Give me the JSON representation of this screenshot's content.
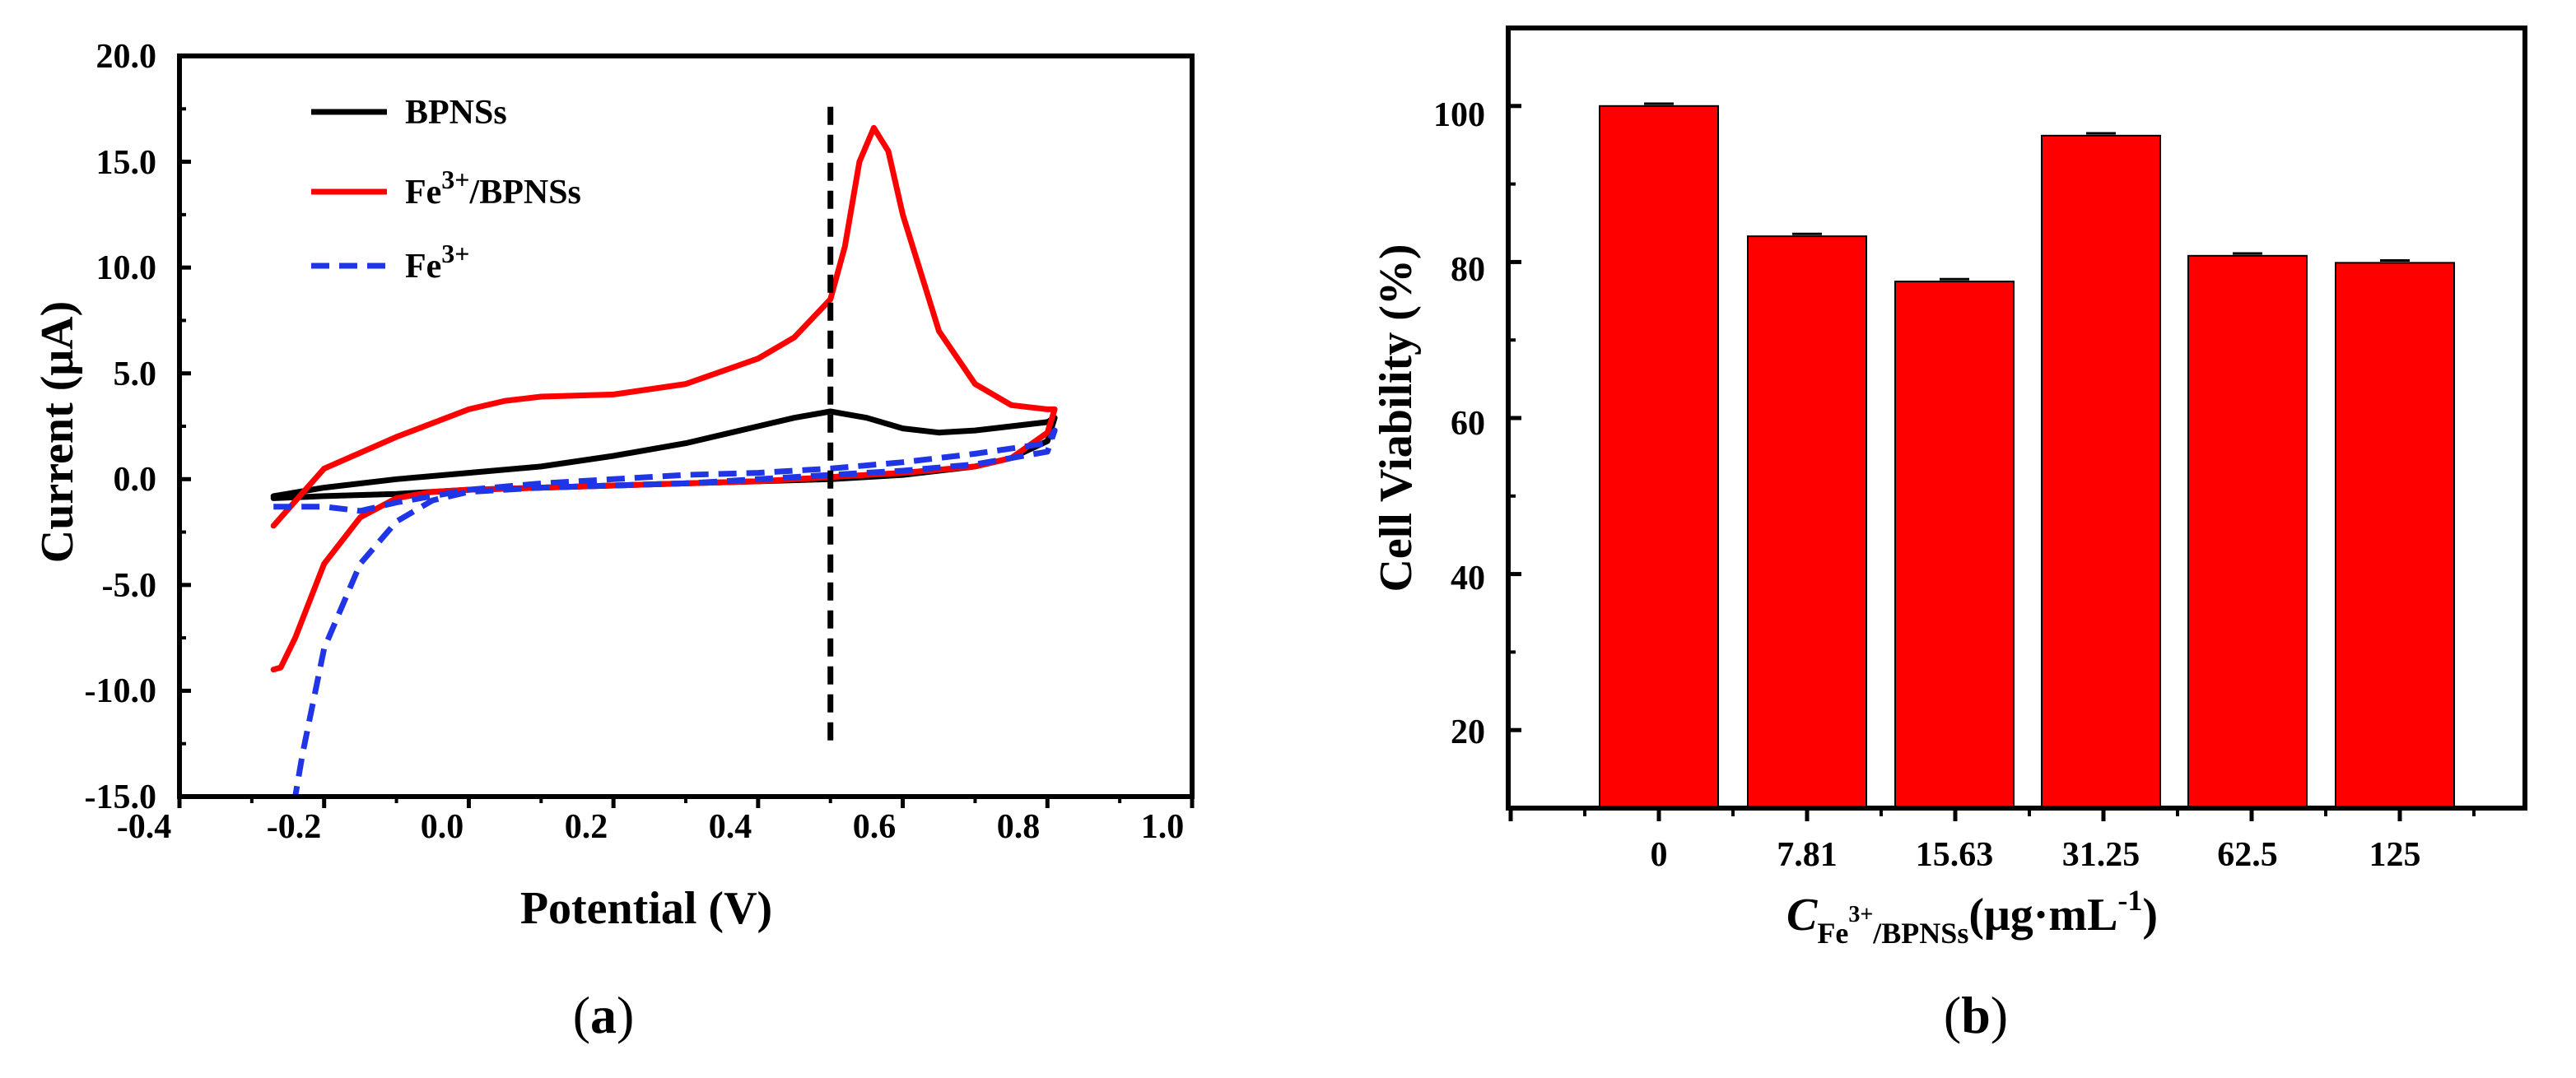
{
  "chart_data": [
    {
      "id": "a",
      "type": "line",
      "xlabel": "Potential (V)",
      "ylabel": "Current (μA)",
      "xlim": [
        -0.4,
        1.0
      ],
      "ylim": [
        -15.0,
        20.0
      ],
      "xticks": [
        "-0.4",
        "-0.2",
        "0.0",
        "0.2",
        "0.4",
        "0.6",
        "0.8",
        "1.0"
      ],
      "yticks": [
        "20.0",
        "15.0",
        "10.0",
        "5.0",
        "0.0",
        "-5.0",
        "-10.0",
        "-15.0"
      ],
      "legend_position": "top-left",
      "annotations": [
        {
          "type": "vertical-dashed-line",
          "x": 0.5,
          "y_from": -12.8,
          "y_to": 17.6
        }
      ],
      "series": [
        {
          "name": "BPNSs",
          "legend_main": "BPNSs",
          "legend_sup": "",
          "legend_tail": "",
          "color": "#000000",
          "dash": "solid",
          "x": [
            -0.27,
            -0.2,
            -0.1,
            0.0,
            0.1,
            0.2,
            0.3,
            0.4,
            0.45,
            0.5,
            0.55,
            0.6,
            0.65,
            0.7,
            0.75,
            0.8,
            0.81,
            0.8,
            0.75,
            0.7,
            0.65,
            0.6,
            0.5,
            0.4,
            0.3,
            0.2,
            0.1,
            0.0,
            -0.1,
            -0.2,
            -0.27
          ],
          "y": [
            -0.8,
            -0.4,
            0.0,
            0.3,
            0.6,
            1.1,
            1.7,
            2.5,
            2.9,
            3.2,
            2.9,
            2.4,
            2.2,
            2.3,
            2.5,
            2.7,
            2.9,
            1.8,
            1.0,
            0.6,
            0.4,
            0.2,
            0.0,
            -0.1,
            -0.2,
            -0.3,
            -0.4,
            -0.5,
            -0.7,
            -0.8,
            -0.9
          ]
        },
        {
          "name": "Fe3+/BPNSs",
          "legend_main": "Fe",
          "legend_sup": "3+",
          "legend_tail": "/BPNSs",
          "color": "#ff0000",
          "dash": "solid",
          "x": [
            -0.27,
            -0.2,
            -0.1,
            0.0,
            0.05,
            0.1,
            0.2,
            0.3,
            0.4,
            0.45,
            0.5,
            0.52,
            0.54,
            0.56,
            0.58,
            0.6,
            0.65,
            0.7,
            0.75,
            0.8,
            0.81,
            0.8,
            0.75,
            0.7,
            0.6,
            0.5,
            0.4,
            0.3,
            0.2,
            0.1,
            0.0,
            -0.05,
            -0.1,
            -0.15,
            -0.2,
            -0.24,
            -0.26,
            -0.27
          ],
          "y": [
            -2.2,
            0.5,
            2.0,
            3.3,
            3.7,
            3.9,
            4.0,
            4.5,
            5.7,
            6.7,
            8.5,
            11.0,
            15.0,
            16.6,
            15.5,
            12.5,
            7.0,
            4.5,
            3.5,
            3.3,
            3.3,
            2.2,
            1.0,
            0.6,
            0.3,
            0.1,
            -0.1,
            -0.2,
            -0.3,
            -0.4,
            -0.5,
            -0.6,
            -0.9,
            -1.8,
            -4.0,
            -7.5,
            -8.9,
            -9.0
          ]
        },
        {
          "name": "Fe3+",
          "legend_main": "Fe",
          "legend_sup": "3+",
          "legend_tail": "",
          "color": "#1f35e6",
          "dash": "dashed",
          "x": [
            -0.27,
            -0.2,
            -0.15,
            -0.1,
            0.0,
            0.1,
            0.2,
            0.3,
            0.4,
            0.5,
            0.6,
            0.7,
            0.8,
            0.81,
            0.8,
            0.7,
            0.6,
            0.5,
            0.4,
            0.3,
            0.2,
            0.1,
            0.0,
            -0.05,
            -0.1,
            -0.15,
            -0.2,
            -0.23,
            -0.24
          ],
          "y": [
            -1.3,
            -1.3,
            -1.5,
            -1.1,
            -0.5,
            -0.2,
            0.0,
            0.2,
            0.3,
            0.5,
            0.8,
            1.2,
            1.7,
            2.3,
            1.3,
            0.7,
            0.4,
            0.2,
            0.0,
            -0.2,
            -0.3,
            -0.4,
            -0.6,
            -1.0,
            -2.0,
            -4.0,
            -8.0,
            -13.0,
            -15.0
          ]
        }
      ],
      "caption_letter": "a"
    },
    {
      "id": "b",
      "type": "bar",
      "categories": [
        "0",
        "7.81",
        "15.63",
        "31.25",
        "62.5",
        "125"
      ],
      "values": [
        100.0,
        83.3,
        77.5,
        96.2,
        80.8,
        79.9
      ],
      "errors": [
        0.3,
        0.3,
        0.3,
        0.3,
        0.3,
        0.3
      ],
      "bar_color": "#ff0000",
      "ylabel": "Cell Viability (%)",
      "xlabel_main": "C",
      "xlabel_sub_left": "Fe",
      "xlabel_sub_sup": "3+",
      "xlabel_sub_right": "/BPNSs",
      "xlabel_unit": "(μg·mL",
      "xlabel_unit_sup": "-1",
      "xlabel_close": ")",
      "ylim": [
        10,
        110
      ],
      "yticks": [
        "100",
        "80",
        "60",
        "40",
        "20"
      ],
      "caption_letter": "b"
    }
  ]
}
